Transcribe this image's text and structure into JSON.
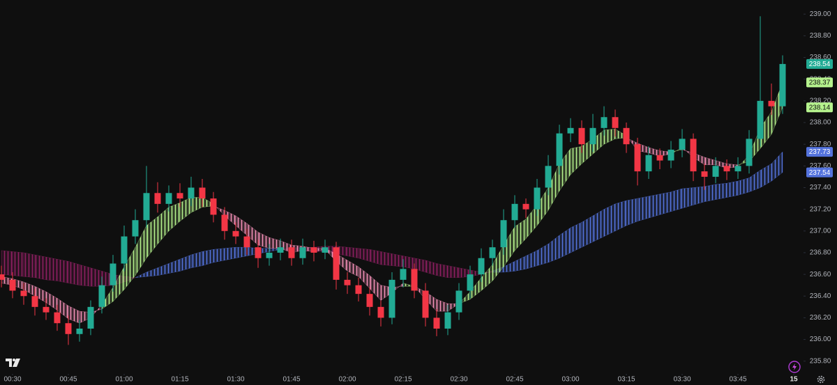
{
  "chart_data": {
    "type": "candlestick",
    "x": [
      "00:27",
      "00:30",
      "00:33",
      "00:36",
      "00:39",
      "00:42",
      "00:45",
      "00:48",
      "00:51",
      "00:54",
      "00:57",
      "01:00",
      "01:03",
      "01:06",
      "01:09",
      "01:12",
      "01:15",
      "01:18",
      "01:21",
      "01:24",
      "01:27",
      "01:30",
      "01:33",
      "01:36",
      "01:39",
      "01:42",
      "01:45",
      "01:48",
      "01:51",
      "01:54",
      "01:57",
      "02:00",
      "02:03",
      "02:06",
      "02:09",
      "02:12",
      "02:15",
      "02:18",
      "02:21",
      "02:24",
      "02:27",
      "02:30",
      "02:33",
      "02:36",
      "02:39",
      "02:42",
      "02:45",
      "02:48",
      "02:51",
      "02:54",
      "02:57",
      "03:00",
      "03:03",
      "03:06",
      "03:09",
      "03:12",
      "03:15",
      "03:18",
      "03:21",
      "03:24",
      "03:27",
      "03:30",
      "03:33",
      "03:36",
      "03:39",
      "03:42",
      "03:45",
      "03:48",
      "03:51",
      "03:54",
      "03:57"
    ],
    "open": [
      236.6,
      236.55,
      236.45,
      236.4,
      236.3,
      236.25,
      236.15,
      236.05,
      236.1,
      236.3,
      236.5,
      236.7,
      236.95,
      237.1,
      237.35,
      237.25,
      237.35,
      237.3,
      237.4,
      237.3,
      237.15,
      237.0,
      236.95,
      236.85,
      236.75,
      236.8,
      236.85,
      236.75,
      236.85,
      236.8,
      236.85,
      236.55,
      236.5,
      236.42,
      236.3,
      236.2,
      236.55,
      236.65,
      236.45,
      236.2,
      236.1,
      236.25,
      236.45,
      236.6,
      236.75,
      236.85,
      237.1,
      237.25,
      237.2,
      237.4,
      237.6,
      237.9,
      237.95,
      237.8,
      237.95,
      238.05,
      237.95,
      237.8,
      237.55,
      237.7,
      237.65,
      237.75,
      237.85,
      237.55,
      237.5,
      237.6,
      237.55,
      237.6,
      237.85,
      238.2,
      238.15
    ],
    "high": [
      236.68,
      236.62,
      236.52,
      236.47,
      236.38,
      236.32,
      236.22,
      236.18,
      236.36,
      236.58,
      236.78,
      237.05,
      237.2,
      237.6,
      237.45,
      237.42,
      237.44,
      237.5,
      237.48,
      237.36,
      237.22,
      237.08,
      237.02,
      236.92,
      236.88,
      236.93,
      236.92,
      236.93,
      236.91,
      236.92,
      236.9,
      236.62,
      236.57,
      236.48,
      236.36,
      236.62,
      236.74,
      236.7,
      236.52,
      236.28,
      236.32,
      236.52,
      236.68,
      236.84,
      236.92,
      237.2,
      237.33,
      237.3,
      237.48,
      237.7,
      237.98,
      238.04,
      238.02,
      238.08,
      238.15,
      238.12,
      238.0,
      237.86,
      237.78,
      237.76,
      237.83,
      237.94,
      237.9,
      237.62,
      237.68,
      237.66,
      237.68,
      237.93,
      238.98,
      238.36,
      238.62
    ],
    "low": [
      236.48,
      236.38,
      236.32,
      236.22,
      236.18,
      236.08,
      235.95,
      235.98,
      236.04,
      236.24,
      236.44,
      236.63,
      236.88,
      237.03,
      237.17,
      237.18,
      237.22,
      237.23,
      237.22,
      237.08,
      236.92,
      236.88,
      236.78,
      236.66,
      236.68,
      236.73,
      236.68,
      236.69,
      236.72,
      236.74,
      236.46,
      236.42,
      236.35,
      236.22,
      236.12,
      236.14,
      236.48,
      236.38,
      236.12,
      236.03,
      236.04,
      236.18,
      236.38,
      236.53,
      236.68,
      236.78,
      237.03,
      237.12,
      237.14,
      237.33,
      237.52,
      237.82,
      237.72,
      237.73,
      237.88,
      237.87,
      237.72,
      237.42,
      237.48,
      237.57,
      237.58,
      237.68,
      237.46,
      237.38,
      237.44,
      237.47,
      237.48,
      237.53,
      237.78,
      238.07,
      238.08
    ],
    "close": [
      236.55,
      236.45,
      236.4,
      236.3,
      236.25,
      236.15,
      236.05,
      236.1,
      236.3,
      236.5,
      236.7,
      236.95,
      237.1,
      237.35,
      237.25,
      237.35,
      237.3,
      237.4,
      237.3,
      237.15,
      237.0,
      236.95,
      236.85,
      236.75,
      236.8,
      236.85,
      236.75,
      236.85,
      236.8,
      236.85,
      236.55,
      236.5,
      236.42,
      236.3,
      236.2,
      236.55,
      236.65,
      236.45,
      236.2,
      236.1,
      236.25,
      236.45,
      236.6,
      236.75,
      236.85,
      237.1,
      237.25,
      237.2,
      237.4,
      237.6,
      237.9,
      237.95,
      237.8,
      237.95,
      238.05,
      237.95,
      237.8,
      237.55,
      237.7,
      237.65,
      237.75,
      237.85,
      237.55,
      237.5,
      237.6,
      237.55,
      237.6,
      237.85,
      238.2,
      238.15,
      238.54
    ],
    "up_color": "#22ab94",
    "down_color": "#f23645",
    "fast_ribbon": {
      "a": [
        236.52,
        236.5,
        236.46,
        236.4,
        236.34,
        236.27,
        236.19,
        236.15,
        236.2,
        236.32,
        236.48,
        236.67,
        236.85,
        237.05,
        237.13,
        237.22,
        237.26,
        237.31,
        237.31,
        237.25,
        237.14,
        237.05,
        236.96,
        236.87,
        236.84,
        236.84,
        236.8,
        236.82,
        236.81,
        236.83,
        236.72,
        236.63,
        236.58,
        236.47,
        236.36,
        236.43,
        236.52,
        236.49,
        236.37,
        236.26,
        236.26,
        236.33,
        236.44,
        236.57,
        236.69,
        236.87,
        237.04,
        237.11,
        237.24,
        237.4,
        237.62,
        237.76,
        237.78,
        237.85,
        237.93,
        237.94,
        237.88,
        237.74,
        237.72,
        237.69,
        237.71,
        237.77,
        237.68,
        237.61,
        237.61,
        237.58,
        237.59,
        237.7,
        237.95,
        238.1,
        238.37
      ],
      "b": [
        236.58,
        236.56,
        236.53,
        236.49,
        236.44,
        236.38,
        236.31,
        236.26,
        236.25,
        236.28,
        236.35,
        236.46,
        236.59,
        236.75,
        236.88,
        237.0,
        237.09,
        237.17,
        237.22,
        237.23,
        237.19,
        237.14,
        237.07,
        236.99,
        236.94,
        236.91,
        236.87,
        236.86,
        236.84,
        236.84,
        236.79,
        236.73,
        236.67,
        236.59,
        236.5,
        236.48,
        236.49,
        236.49,
        236.44,
        236.37,
        236.33,
        236.33,
        236.37,
        236.45,
        236.54,
        236.67,
        236.82,
        236.93,
        237.05,
        237.19,
        237.37,
        237.52,
        237.62,
        237.71,
        237.8,
        237.85,
        237.86,
        237.81,
        237.77,
        237.74,
        237.73,
        237.75,
        237.72,
        237.68,
        237.65,
        237.62,
        237.61,
        237.64,
        237.76,
        237.89,
        238.14
      ],
      "up_color": "#b5f28d",
      "down_color": "#f590b8"
    },
    "slow_ribbon": {
      "a": [
        236.6,
        236.59,
        236.58,
        236.57,
        236.55,
        236.54,
        236.52,
        236.5,
        236.49,
        236.49,
        236.5,
        236.53,
        236.57,
        236.62,
        236.66,
        236.7,
        236.74,
        236.78,
        236.81,
        236.83,
        236.84,
        236.85,
        236.85,
        236.84,
        236.84,
        236.83,
        236.82,
        236.82,
        236.81,
        236.81,
        236.79,
        236.77,
        236.75,
        236.72,
        236.69,
        236.68,
        236.67,
        236.65,
        236.62,
        236.59,
        236.57,
        236.57,
        236.58,
        236.6,
        236.63,
        236.67,
        236.72,
        236.77,
        236.82,
        236.88,
        236.96,
        237.03,
        237.08,
        237.14,
        237.2,
        237.25,
        237.28,
        237.3,
        237.32,
        237.34,
        237.36,
        237.39,
        237.4,
        237.41,
        237.43,
        237.44,
        237.46,
        237.49,
        237.56,
        237.62,
        237.73
      ],
      "b": [
        236.82,
        236.81,
        236.8,
        236.78,
        236.76,
        236.74,
        236.72,
        236.69,
        236.66,
        236.63,
        236.6,
        236.58,
        236.57,
        236.58,
        236.59,
        236.61,
        236.63,
        236.66,
        236.68,
        236.71,
        236.73,
        236.75,
        236.77,
        236.79,
        236.81,
        236.83,
        236.84,
        236.85,
        236.85,
        236.86,
        236.86,
        236.85,
        236.84,
        236.83,
        236.81,
        236.79,
        236.77,
        236.75,
        236.73,
        236.7,
        236.68,
        236.66,
        236.64,
        236.62,
        236.62,
        236.62,
        236.63,
        236.65,
        236.68,
        236.71,
        236.75,
        236.8,
        236.85,
        236.9,
        236.95,
        237.0,
        237.05,
        237.09,
        237.12,
        237.15,
        237.18,
        237.21,
        237.24,
        237.27,
        237.29,
        237.31,
        237.33,
        237.36,
        237.4,
        237.46,
        237.54
      ],
      "up_color": "#5473dd",
      "down_color": "#8e1f62"
    },
    "ylim": [
      235.58,
      239.13
    ],
    "yticks": [
      {
        "value": 235.8,
        "label": "235.80"
      },
      {
        "value": 236.0,
        "label": "236.00"
      },
      {
        "value": 236.2,
        "label": "236.20"
      },
      {
        "value": 236.4,
        "label": "236.40"
      },
      {
        "value": 236.6,
        "label": "236.60"
      },
      {
        "value": 236.8,
        "label": "236.80"
      },
      {
        "value": 237.0,
        "label": "237.00"
      },
      {
        "value": 237.2,
        "label": "237.20"
      },
      {
        "value": 237.4,
        "label": "237.40"
      },
      {
        "value": 237.6,
        "label": "237.60"
      },
      {
        "value": 237.8,
        "label": "237.80"
      },
      {
        "value": 238.0,
        "label": "238.00"
      },
      {
        "value": 238.2,
        "label": "238.20"
      },
      {
        "value": 238.4,
        "label": "238.40"
      },
      {
        "value": 238.6,
        "label": "238.60"
      },
      {
        "value": 238.8,
        "label": "238.80"
      },
      {
        "value": 239.0,
        "label": "239.00"
      }
    ],
    "xticks": [
      "00:30",
      "00:45",
      "01:00",
      "01:15",
      "01:30",
      "01:45",
      "02:00",
      "02:15",
      "02:30",
      "02:45",
      "03:00",
      "03:15",
      "03:30",
      "03:45",
      {
        "value": "04:00",
        "label": "15"
      }
    ]
  }
}
